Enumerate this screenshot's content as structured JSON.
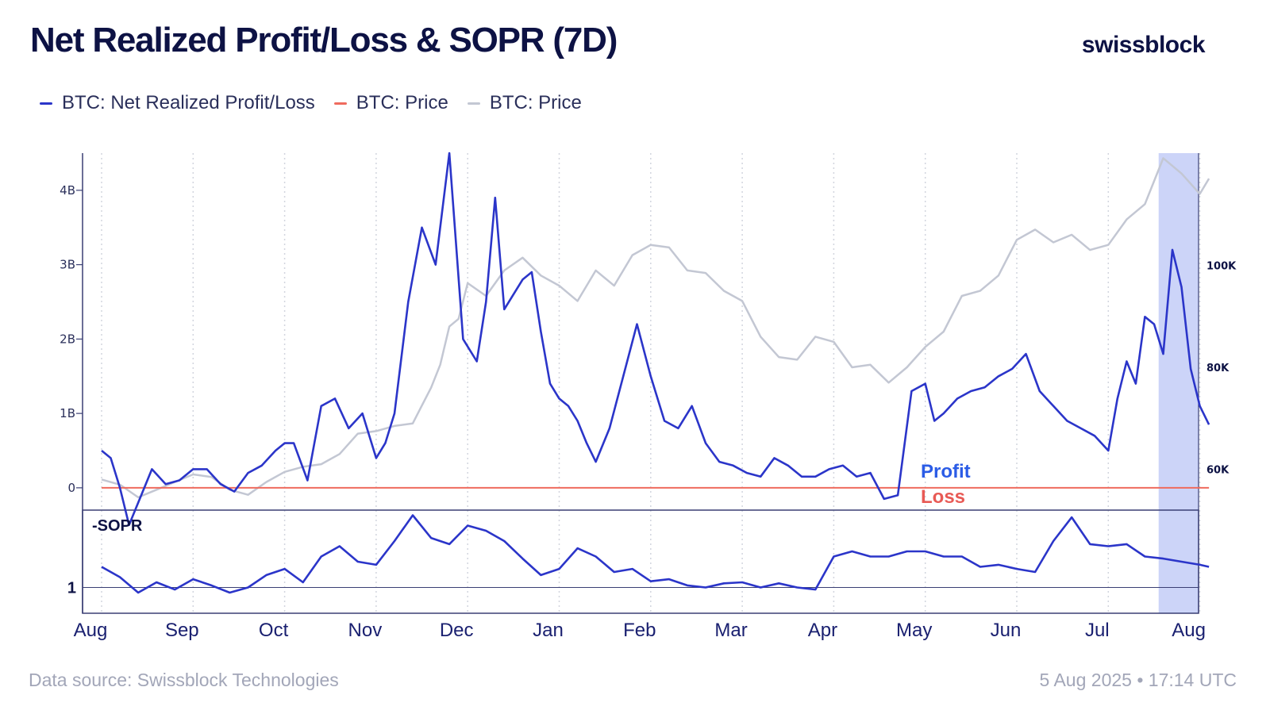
{
  "header": {
    "title": "Net Realized Profit/Loss & SOPR (7D)",
    "brand": "swissblock"
  },
  "legend": [
    {
      "label": "BTC: Net Realized Profit/Loss",
      "color": "#2b35c9"
    },
    {
      "label": "BTC: Price",
      "color": "#ef6b5e"
    },
    {
      "label": "BTC: Price",
      "color": "#c3c7d3"
    }
  ],
  "footer": {
    "source": "Data source: Swissblock Technologies",
    "timestamp": "5 Aug 2025 • 17:14 UTC"
  },
  "chart_data": [
    {
      "type": "line",
      "title": "Net Realized Profit/Loss & SOPR (7D)",
      "x_ticks": [
        "Aug",
        "Sep",
        "Oct",
        "Nov",
        "Dec",
        "Jan",
        "Feb",
        "Mar",
        "Apr",
        "May",
        "Jun",
        "Jul",
        "Aug"
      ],
      "left_axis": {
        "ticks": [
          "0",
          "1B",
          "2B",
          "3B",
          "4B"
        ],
        "ylim": [
          -0.3,
          4.5
        ],
        "unit": "B USD"
      },
      "right_axis": {
        "ticks": [
          "60K",
          "80K",
          "100K"
        ],
        "ylim": [
          52000,
          122000
        ]
      },
      "annotations": {
        "profit": "Profit",
        "loss": "Loss",
        "profit_color": "#2b5ce6",
        "loss_color": "#e85a55"
      },
      "highlight": {
        "from_month": 11.55,
        "to_month": 12.6,
        "color": "#c9d2f8"
      },
      "zero_line_color": "#ef6b5e",
      "series": [
        {
          "name": "BTC: Net Realized Profit/Loss",
          "axis": "left",
          "color": "#2b35c9",
          "x": [
            0,
            0.1,
            0.2,
            0.3,
            0.4,
            0.55,
            0.7,
            0.85,
            1.0,
            1.15,
            1.3,
            1.45,
            1.6,
            1.75,
            1.9,
            2.0,
            2.1,
            2.25,
            2.4,
            2.55,
            2.7,
            2.85,
            3.0,
            3.1,
            3.2,
            3.35,
            3.5,
            3.65,
            3.8,
            3.95,
            4.1,
            4.2,
            4.3,
            4.4,
            4.5,
            4.6,
            4.7,
            4.8,
            4.9,
            5.0,
            5.1,
            5.2,
            5.3,
            5.4,
            5.55,
            5.7,
            5.85,
            6.0,
            6.15,
            6.3,
            6.45,
            6.6,
            6.75,
            6.9,
            7.05,
            7.2,
            7.35,
            7.5,
            7.65,
            7.8,
            7.95,
            8.1,
            8.25,
            8.4,
            8.55,
            8.7,
            8.85,
            9.0,
            9.1,
            9.2,
            9.35,
            9.5,
            9.65,
            9.8,
            9.95,
            10.1,
            10.25,
            10.4,
            10.55,
            10.7,
            10.85,
            11.0,
            11.1,
            11.2,
            11.3,
            11.4,
            11.5,
            11.6,
            11.7,
            11.8,
            11.9,
            12.0,
            12.1
          ],
          "y": [
            0.5,
            0.4,
            0.0,
            -0.5,
            -0.2,
            0.25,
            0.05,
            0.1,
            0.25,
            0.25,
            0.05,
            -0.05,
            0.2,
            0.3,
            0.5,
            0.6,
            0.6,
            0.1,
            1.1,
            1.2,
            0.8,
            1.0,
            0.4,
            0.6,
            1.0,
            2.5,
            3.5,
            3.0,
            4.5,
            2.0,
            1.7,
            2.5,
            3.9,
            2.4,
            2.6,
            2.8,
            2.9,
            2.1,
            1.4,
            1.2,
            1.1,
            0.9,
            0.6,
            0.35,
            0.8,
            1.5,
            2.2,
            1.5,
            0.9,
            0.8,
            1.1,
            0.6,
            0.35,
            0.3,
            0.2,
            0.15,
            0.4,
            0.3,
            0.15,
            0.15,
            0.25,
            0.3,
            0.15,
            0.2,
            -0.15,
            -0.1,
            1.3,
            1.4,
            0.9,
            1.0,
            1.2,
            1.3,
            1.35,
            1.5,
            1.6,
            1.8,
            1.3,
            1.1,
            0.9,
            0.8,
            0.7,
            0.5,
            1.2,
            1.7,
            1.4,
            2.3,
            2.2,
            1.8,
            3.2,
            2.7,
            1.6,
            1.1,
            0.85
          ]
        },
        {
          "name": "BTC: Price",
          "axis": "right",
          "color": "#c3c7d3",
          "x": [
            0,
            0.2,
            0.4,
            0.6,
            0.8,
            1.0,
            1.2,
            1.4,
            1.6,
            1.8,
            2.0,
            2.2,
            2.4,
            2.6,
            2.8,
            3.0,
            3.2,
            3.4,
            3.5,
            3.6,
            3.7,
            3.8,
            3.9,
            4.0,
            4.2,
            4.4,
            4.6,
            4.8,
            5.0,
            5.2,
            5.4,
            5.6,
            5.8,
            6.0,
            6.2,
            6.4,
            6.6,
            6.8,
            7.0,
            7.2,
            7.4,
            7.6,
            7.8,
            8.0,
            8.2,
            8.4,
            8.6,
            8.8,
            9.0,
            9.2,
            9.4,
            9.6,
            9.8,
            10.0,
            10.2,
            10.4,
            10.6,
            10.8,
            11.0,
            11.2,
            11.4,
            11.6,
            11.8,
            12.0,
            12.1
          ],
          "y": [
            58000,
            57000,
            54500,
            56000,
            57500,
            59000,
            58500,
            56000,
            55000,
            57500,
            59500,
            60500,
            61000,
            63000,
            67000,
            67500,
            68500,
            69000,
            72500,
            76000,
            80500,
            88000,
            89500,
            96500,
            94000,
            99000,
            101500,
            98000,
            96000,
            93000,
            99000,
            96000,
            102000,
            104000,
            103500,
            99000,
            98500,
            95000,
            93000,
            86000,
            82000,
            81500,
            86000,
            85000,
            80000,
            80500,
            77000,
            80000,
            84000,
            87000,
            94000,
            95000,
            98000,
            105000,
            107000,
            104500,
            106000,
            103000,
            104000,
            109000,
            112000,
            121000,
            118000,
            114000,
            117000
          ]
        }
      ]
    },
    {
      "type": "line",
      "title": "-SOPR",
      "reference_line": {
        "label": "1",
        "value": 1.0
      },
      "ylim": [
        0.975,
        1.075
      ],
      "series": [
        {
          "name": "-SOPR",
          "color": "#2b35c9",
          "x": [
            0,
            0.2,
            0.4,
            0.6,
            0.8,
            1.0,
            1.2,
            1.4,
            1.6,
            1.8,
            2.0,
            2.2,
            2.4,
            2.6,
            2.8,
            3.0,
            3.2,
            3.4,
            3.6,
            3.8,
            4.0,
            4.2,
            4.4,
            4.6,
            4.8,
            5.0,
            5.2,
            5.4,
            5.6,
            5.8,
            6.0,
            6.2,
            6.4,
            6.6,
            6.8,
            7.0,
            7.2,
            7.4,
            7.6,
            7.8,
            8.0,
            8.2,
            8.4,
            8.6,
            8.8,
            9.0,
            9.2,
            9.4,
            9.6,
            9.8,
            10.0,
            10.2,
            10.4,
            10.6,
            10.8,
            11.0,
            11.2,
            11.4,
            11.6,
            11.8,
            12.0,
            12.1
          ],
          "y": [
            1.02,
            1.01,
            0.995,
            1.005,
            0.998,
            1.008,
            1.002,
            0.995,
            1.0,
            1.012,
            1.018,
            1.005,
            1.03,
            1.04,
            1.025,
            1.022,
            1.045,
            1.07,
            1.048,
            1.042,
            1.06,
            1.055,
            1.045,
            1.028,
            1.012,
            1.018,
            1.038,
            1.03,
            1.015,
            1.018,
            1.006,
            1.008,
            1.002,
            1.0,
            1.004,
            1.005,
            1.0,
            1.004,
            1.0,
            0.998,
            1.03,
            1.035,
            1.03,
            1.03,
            1.035,
            1.035,
            1.03,
            1.03,
            1.02,
            1.022,
            1.018,
            1.015,
            1.045,
            1.068,
            1.042,
            1.04,
            1.042,
            1.03,
            1.028,
            1.025,
            1.022,
            1.02
          ]
        }
      ]
    }
  ]
}
